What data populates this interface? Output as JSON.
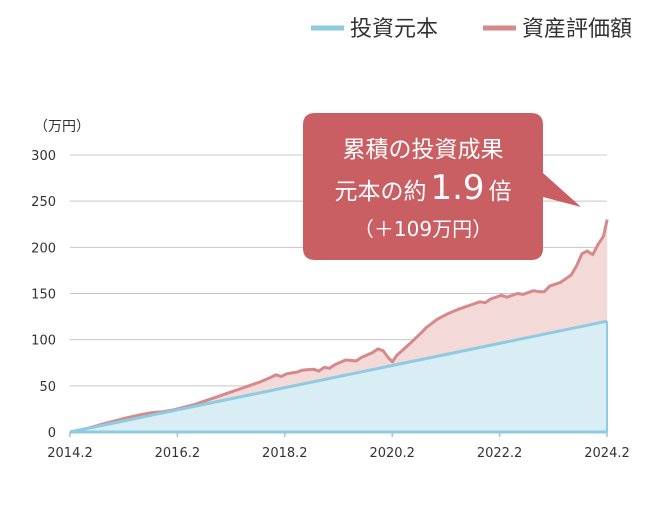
{
  "chart_data": {
    "type": "area",
    "y_unit_label": "（万円）",
    "x_tick_labels": [
      "2014.2",
      "2016.2",
      "2018.2",
      "2020.2",
      "2022.2",
      "2024.2"
    ],
    "y_ticks": [
      0,
      50,
      100,
      150,
      200,
      250,
      300
    ],
    "xlim": [
      2014.1667,
      2024.1667
    ],
    "ylim": [
      0,
      300
    ],
    "grid": true,
    "legend_position": "top-right",
    "colors": {
      "principal_line": "#8ecbe0",
      "principal_fill": "#d9edf4",
      "asset_line": "#d6898b",
      "asset_fill": "#f4d9d9",
      "callout": "#c95f62"
    },
    "series": [
      {
        "name": "投資元本",
        "x": [
          2014.1667,
          2024.1667
        ],
        "values": [
          0,
          120
        ]
      },
      {
        "name": "資産評価額",
        "x": [
          2014.17,
          2014.5,
          2014.8,
          2015.0,
          2015.2,
          2015.5,
          2015.7,
          2015.9,
          2016.1,
          2016.3,
          2016.5,
          2016.7,
          2016.9,
          2017.1,
          2017.3,
          2017.5,
          2017.7,
          2017.9,
          2018.0,
          2018.1,
          2018.2,
          2018.4,
          2018.5,
          2018.7,
          2018.8,
          2018.9,
          2019.0,
          2019.1,
          2019.3,
          2019.5,
          2019.6,
          2019.8,
          2019.9,
          2020.0,
          2020.1,
          2020.17,
          2020.25,
          2020.35,
          2020.5,
          2020.7,
          2020.8,
          2021.0,
          2021.2,
          2021.4,
          2021.6,
          2021.8,
          2021.9,
          2022.0,
          2022.2,
          2022.3,
          2022.5,
          2022.6,
          2022.8,
          2022.9,
          2023.0,
          2023.1,
          2023.3,
          2023.5,
          2023.6,
          2023.7,
          2023.8,
          2023.9,
          2024.0,
          2024.1,
          2024.17
        ],
        "values": [
          0,
          4,
          9,
          12,
          15,
          19,
          21,
          22,
          24,
          27,
          30,
          34,
          38,
          42,
          46,
          50,
          54,
          59,
          62,
          60,
          63,
          65,
          67,
          68,
          66,
          70,
          69,
          73,
          78,
          77,
          81,
          86,
          90,
          88,
          80,
          76,
          83,
          88,
          96,
          107,
          113,
          122,
          128,
          133,
          137,
          141,
          140,
          144,
          148,
          146,
          150,
          149,
          153,
          152,
          152,
          158,
          162,
          170,
          180,
          193,
          196,
          192,
          203,
          212,
          230
        ]
      }
    ],
    "callout": {
      "line1": "累積の投資成果",
      "line2_prefix": "元本の約",
      "line2_value": "1.9",
      "line2_suffix": "倍",
      "line3": "（＋109万円）"
    }
  }
}
